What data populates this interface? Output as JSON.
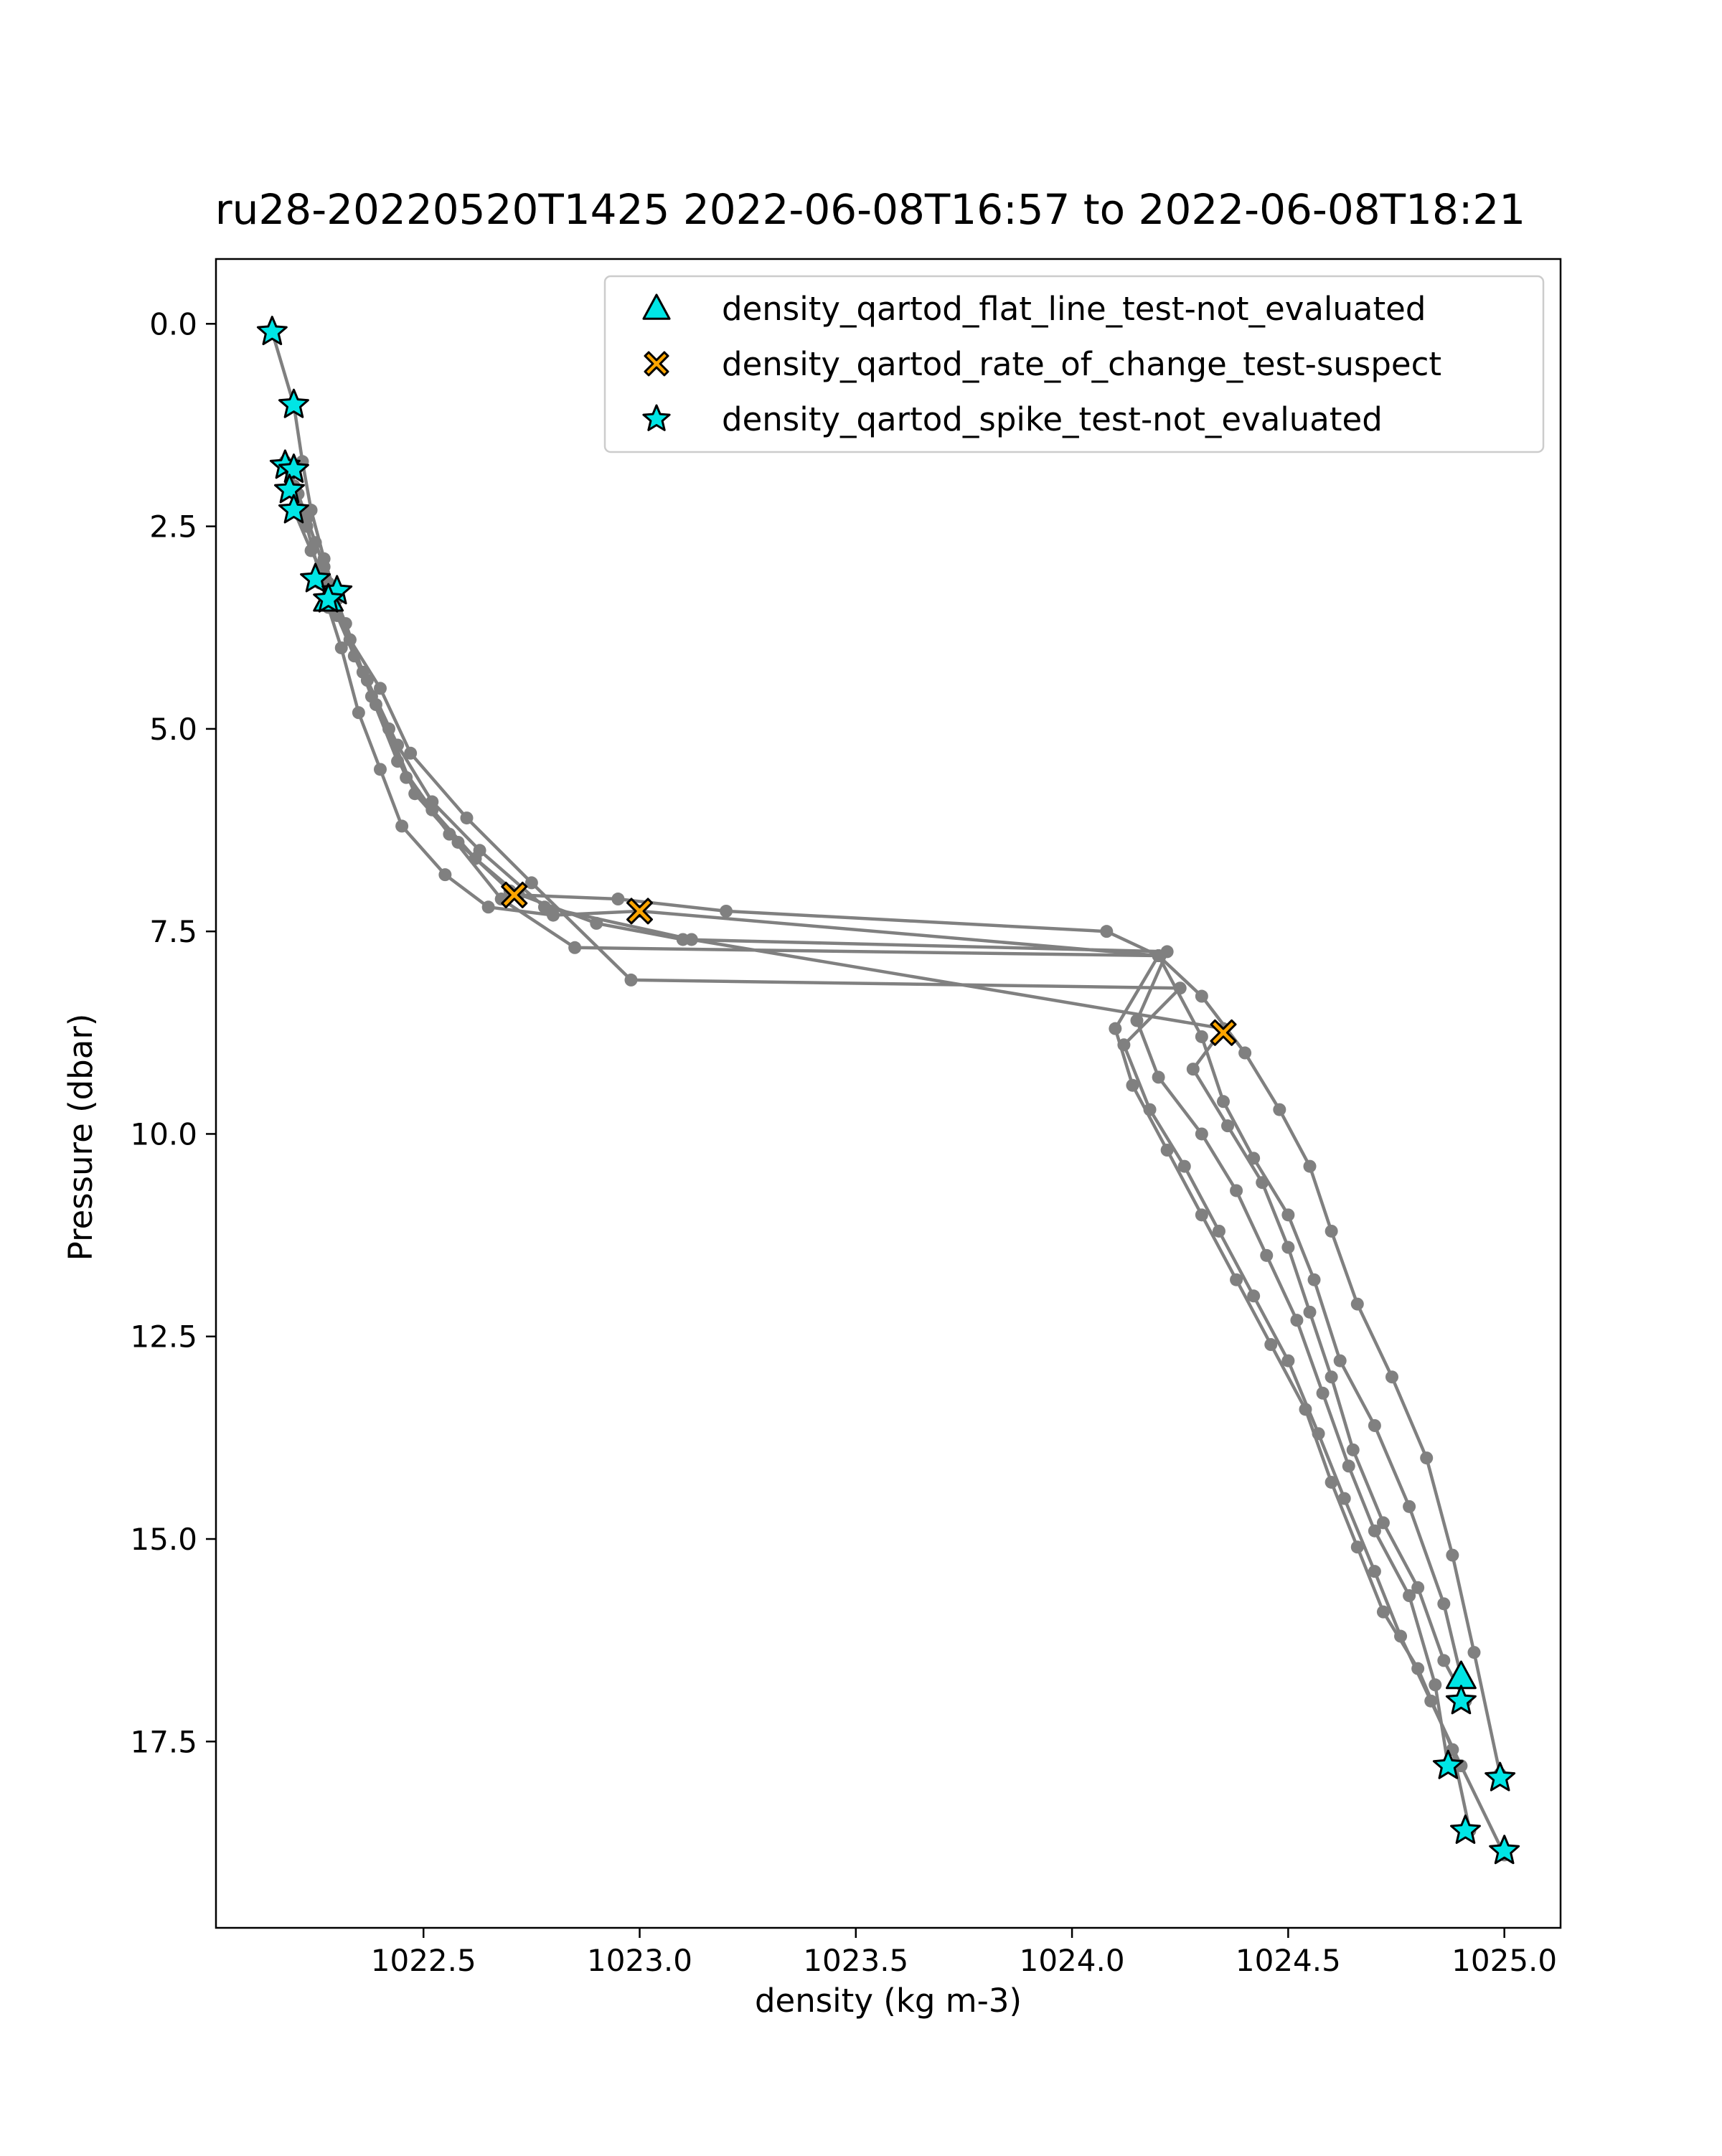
{
  "chart_data": {
    "type": "scatter",
    "title": "ru28-20220520T1425 2022-06-08T16:57 to 2022-06-08T18:21",
    "xlabel": "density (kg m-3)",
    "ylabel": "Pressure (dbar)",
    "xlim": [
      1022.02,
      1025.13
    ],
    "ylim": [
      19.8,
      -0.8
    ],
    "y_inverted": true,
    "grid": false,
    "x_ticks": [
      1022.5,
      1023.0,
      1023.5,
      1024.0,
      1024.5,
      1025.0
    ],
    "x_tick_labels": [
      "1022.5",
      "1023.0",
      "1023.5",
      "1024.0",
      "1024.5",
      "1025.0"
    ],
    "y_ticks": [
      0.0,
      2.5,
      5.0,
      7.5,
      10.0,
      12.5,
      15.0,
      17.5
    ],
    "y_tick_labels": [
      "0.0",
      "2.5",
      "5.0",
      "7.5",
      "10.0",
      "12.5",
      "15.0",
      "17.5"
    ],
    "profile_color": "#808080",
    "profiles": [
      {
        "x": [
          1022.15,
          1022.2,
          1022.22,
          1022.24,
          1022.27,
          1022.3,
          1022.33,
          1022.38,
          1022.44,
          1022.52,
          1022.62,
          1022.72,
          1022.95,
          1023.2,
          1024.08,
          1024.2,
          1024.3,
          1024.4,
          1024.48,
          1024.55,
          1024.6,
          1024.66,
          1024.74,
          1024.82,
          1024.88,
          1024.93,
          1024.99
        ],
        "y": [
          0.1,
          1.0,
          1.7,
          2.3,
          2.9,
          3.4,
          3.9,
          4.6,
          5.4,
          6.0,
          6.6,
          7.05,
          7.1,
          7.25,
          7.5,
          7.8,
          8.3,
          9.0,
          9.7,
          10.4,
          11.2,
          12.1,
          13.0,
          14.0,
          15.2,
          16.4,
          17.9
        ]
      },
      {
        "x": [
          1022.18,
          1022.2,
          1022.23,
          1022.26,
          1022.28,
          1022.31,
          1022.35,
          1022.4,
          1022.45,
          1022.55,
          1022.65,
          1022.8,
          1023.0,
          1024.2,
          1024.3,
          1024.35,
          1024.42,
          1024.5,
          1024.56,
          1024.62,
          1024.7,
          1024.78,
          1024.86,
          1024.9
        ],
        "y": [
          1.7,
          2.0,
          2.5,
          3.1,
          3.5,
          4.0,
          4.8,
          5.5,
          6.2,
          6.8,
          7.2,
          7.3,
          7.25,
          7.8,
          8.8,
          9.6,
          10.3,
          11.0,
          11.8,
          12.8,
          13.6,
          14.6,
          15.8,
          16.7
        ]
      },
      {
        "x": [
          1022.19,
          1022.21,
          1022.25,
          1022.29,
          1022.32,
          1022.36,
          1022.42,
          1022.48,
          1022.58,
          1022.7,
          1022.9,
          1023.1,
          1024.22,
          1024.15,
          1024.2,
          1024.3,
          1024.38,
          1024.45,
          1024.52,
          1024.58,
          1024.64,
          1024.7,
          1024.78,
          1024.84,
          1024.87
        ],
        "y": [
          1.8,
          2.1,
          2.7,
          3.3,
          3.7,
          4.3,
          5.0,
          5.8,
          6.4,
          7.0,
          7.4,
          7.6,
          7.75,
          8.6,
          9.3,
          10.0,
          10.7,
          11.5,
          12.3,
          13.2,
          14.1,
          14.9,
          15.7,
          16.8,
          17.8
        ]
      },
      {
        "x": [
          1022.2,
          1022.23,
          1022.27,
          1022.3,
          1022.34,
          1022.39,
          1022.46,
          1022.56,
          1022.68,
          1022.85,
          1024.2,
          1024.1,
          1024.14,
          1024.22,
          1024.3,
          1024.38,
          1024.46,
          1024.54,
          1024.6,
          1024.66,
          1024.72,
          1024.8,
          1024.88,
          1024.92
        ],
        "y": [
          2.0,
          2.4,
          3.0,
          3.6,
          4.1,
          4.7,
          5.6,
          6.3,
          7.1,
          7.7,
          7.8,
          8.7,
          9.4,
          10.2,
          11.0,
          11.8,
          12.6,
          13.4,
          14.3,
          15.1,
          15.9,
          16.6,
          17.6,
          18.6
        ]
      },
      {
        "x": [
          1022.2,
          1022.24,
          1022.28,
          1022.33,
          1022.4,
          1022.47,
          1022.6,
          1022.75,
          1022.98,
          1024.25,
          1024.12,
          1024.18,
          1024.26,
          1024.34,
          1024.42,
          1024.5,
          1024.57,
          1024.63,
          1024.7,
          1024.76,
          1024.83,
          1024.9,
          1025.0
        ],
        "y": [
          2.3,
          2.8,
          3.2,
          3.9,
          4.5,
          5.3,
          6.1,
          6.9,
          8.1,
          8.2,
          8.9,
          9.7,
          10.4,
          11.2,
          12.0,
          12.8,
          13.7,
          14.5,
          15.4,
          16.2,
          17.0,
          17.8,
          18.9
        ]
      },
      {
        "x": [
          1022.26,
          1022.3,
          1022.37,
          1022.44,
          1022.52,
          1022.63,
          1022.78,
          1023.12,
          1024.35,
          1024.28,
          1024.36,
          1024.44,
          1024.5,
          1024.55,
          1024.6,
          1024.65,
          1024.72,
          1024.8,
          1024.86,
          1024.91
        ],
        "y": [
          3.2,
          3.6,
          4.4,
          5.2,
          5.9,
          6.5,
          7.2,
          7.6,
          8.7,
          9.2,
          9.9,
          10.6,
          11.4,
          12.2,
          13.0,
          13.9,
          14.8,
          15.6,
          16.5,
          17.0
        ]
      }
    ],
    "flags": [
      {
        "name": "density_qartod_flat_line_test-not_evaluated",
        "marker": "triangle",
        "color": "#00e5e5",
        "points": [
          {
            "x": 1022.28,
            "y": 3.4
          },
          {
            "x": 1024.9,
            "y": 16.7
          }
        ]
      },
      {
        "name": "density_qartod_rate_of_change_test-suspect",
        "marker": "x",
        "color": "#ffa500",
        "points": [
          {
            "x": 1022.71,
            "y": 7.05
          },
          {
            "x": 1023.0,
            "y": 7.25
          },
          {
            "x": 1024.35,
            "y": 8.75
          }
        ]
      },
      {
        "name": "density_qartod_spike_test-not_evaluated",
        "marker": "star",
        "color": "#00e5e5",
        "points": [
          {
            "x": 1022.15,
            "y": 0.1
          },
          {
            "x": 1022.2,
            "y": 1.0
          },
          {
            "x": 1022.18,
            "y": 1.75
          },
          {
            "x": 1022.2,
            "y": 1.8
          },
          {
            "x": 1022.19,
            "y": 2.05
          },
          {
            "x": 1022.2,
            "y": 2.3
          },
          {
            "x": 1022.25,
            "y": 3.15
          },
          {
            "x": 1022.3,
            "y": 3.3
          },
          {
            "x": 1022.28,
            "y": 3.4
          },
          {
            "x": 1024.9,
            "y": 17.0
          },
          {
            "x": 1024.87,
            "y": 17.8
          },
          {
            "x": 1024.99,
            "y": 17.95
          },
          {
            "x": 1024.91,
            "y": 18.6
          },
          {
            "x": 1025.0,
            "y": 18.85
          }
        ]
      }
    ]
  }
}
